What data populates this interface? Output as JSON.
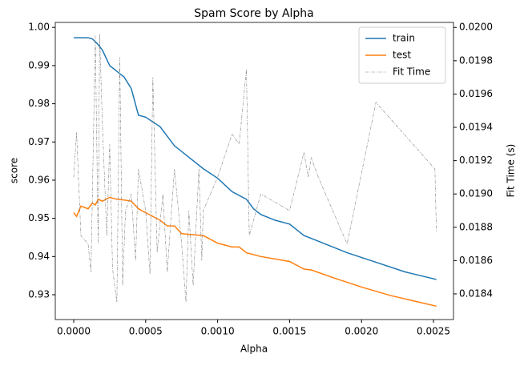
{
  "chart_data": {
    "type": "line",
    "title": "Spam Score by Alpha",
    "xlabel": "Alpha",
    "ylabel": "score",
    "y2label": "Fit Time (s)",
    "xlim": [
      -0.000128,
      0.002639
    ],
    "ylim": [
      0.9235,
      1.0013
    ],
    "y2lim": [
      0.018246,
      0.02003
    ],
    "xticks": [
      {
        "value": 0,
        "label": "0.0000"
      },
      {
        "value": 0.0005,
        "label": "0.0005"
      },
      {
        "value": 0.001,
        "label": "0.0010"
      },
      {
        "value": 0.0015,
        "label": "0.0015"
      },
      {
        "value": 0.002,
        "label": "0.0020"
      },
      {
        "value": 0.0025,
        "label": "0.0025"
      }
    ],
    "yticks": [
      {
        "value": 0.93,
        "label": "0.93"
      },
      {
        "value": 0.94,
        "label": "0.94"
      },
      {
        "value": 0.95,
        "label": "0.95"
      },
      {
        "value": 0.96,
        "label": "0.96"
      },
      {
        "value": 0.97,
        "label": "0.97"
      },
      {
        "value": 0.98,
        "label": "0.98"
      },
      {
        "value": 0.99,
        "label": "0.99"
      },
      {
        "value": 1.0,
        "label": "1.00"
      }
    ],
    "y2ticks": [
      {
        "value": 0.0184,
        "label": "0.0184"
      },
      {
        "value": 0.0186,
        "label": "0.0186"
      },
      {
        "value": 0.0188,
        "label": "0.0188"
      },
      {
        "value": 0.019,
        "label": "0.0190"
      },
      {
        "value": 0.0192,
        "label": "0.0192"
      },
      {
        "value": 0.0194,
        "label": "0.0194"
      },
      {
        "value": 0.0196,
        "label": "0.0196"
      },
      {
        "value": 0.0198,
        "label": "0.0198"
      },
      {
        "value": 0.02,
        "label": "0.0200"
      }
    ],
    "legend": "upper right",
    "series": [
      {
        "name": "train",
        "color": "#1f77b4",
        "x": [
          0,
          0.0001,
          0.00013,
          0.00017,
          0.0002,
          0.00025,
          0.0003,
          0.00035,
          0.0004,
          0.00045,
          0.0005,
          0.0006,
          0.00065,
          0.0007,
          0.0008,
          0.0009,
          0.001,
          0.0011,
          0.0012,
          0.00125,
          0.0013,
          0.0014,
          0.0015,
          0.0016,
          0.0017,
          0.0019,
          0.0021,
          0.0023,
          0.00252
        ],
        "values": [
          0.9973,
          0.9973,
          0.997,
          0.9955,
          0.994,
          0.99,
          0.9885,
          0.987,
          0.984,
          0.977,
          0.9765,
          0.974,
          0.9715,
          0.969,
          0.966,
          0.963,
          0.9605,
          0.957,
          0.955,
          0.9525,
          0.951,
          0.9495,
          0.9485,
          0.9455,
          0.944,
          0.941,
          0.9385,
          0.936,
          0.934
        ]
      },
      {
        "name": "test",
        "color": "#ff7f0e",
        "x": [
          0,
          2e-05,
          5e-05,
          0.0001,
          0.00013,
          0.00015,
          0.00017,
          0.0002,
          0.00025,
          0.0003,
          0.00035,
          0.0004,
          0.00045,
          0.0005,
          0.00055,
          0.0006,
          0.00065,
          0.0007,
          0.00075,
          0.0008,
          0.0009,
          0.001,
          0.0011,
          0.00115,
          0.0012,
          0.0013,
          0.0015,
          0.0016,
          0.00165,
          0.0018,
          0.002,
          0.0022,
          0.00252
        ],
        "values": [
          0.9515,
          0.9505,
          0.9532,
          0.9525,
          0.954,
          0.9535,
          0.955,
          0.9545,
          0.9555,
          0.955,
          0.9548,
          0.9545,
          0.9525,
          0.9515,
          0.9505,
          0.9495,
          0.948,
          0.948,
          0.946,
          0.9458,
          0.9455,
          0.9435,
          0.9425,
          0.9425,
          0.941,
          0.94,
          0.9387,
          0.9367,
          0.9365,
          0.9345,
          0.932,
          0.9298,
          0.927
        ]
      },
      {
        "name": "Fit Time",
        "color": "#808080",
        "axis": "y2",
        "x": [
          0,
          2e-05,
          5e-05,
          0.0001,
          0.00012,
          0.00015,
          0.00017,
          0.00018,
          0.0002,
          0.00023,
          0.00025,
          0.00027,
          0.0003,
          0.00032,
          0.00034,
          0.00036,
          0.0004,
          0.00043,
          0.00045,
          0.0005,
          0.00053,
          0.00055,
          0.00058,
          0.00062,
          0.00065,
          0.0007,
          0.00075,
          0.00078,
          0.0008,
          0.00083,
          0.00087,
          0.00089,
          0.0009,
          0.001,
          0.0011,
          0.00115,
          0.0012,
          0.00122,
          0.0013,
          0.0015,
          0.0016,
          0.00163,
          0.00165,
          0.0017,
          0.0019,
          0.0021,
          0.00251,
          0.00252
        ],
        "values": [
          0.0191,
          0.01937,
          0.01875,
          0.0187,
          0.01853,
          0.01995,
          0.0187,
          0.01996,
          0.0194,
          0.01875,
          0.0193,
          0.01855,
          0.01835,
          0.01982,
          0.01845,
          0.0189,
          0.019,
          0.0186,
          0.01915,
          0.0189,
          0.01852,
          0.0197,
          0.01865,
          0.019,
          0.01853,
          0.01915,
          0.0187,
          0.01835,
          0.0189,
          0.01845,
          0.01915,
          0.0186,
          0.0189,
          0.0191,
          0.01936,
          0.0193,
          0.01975,
          0.01875,
          0.019,
          0.0189,
          0.01925,
          0.0191,
          0.01922,
          0.0191,
          0.0187,
          0.01955,
          0.01915,
          0.01877
        ]
      }
    ]
  }
}
